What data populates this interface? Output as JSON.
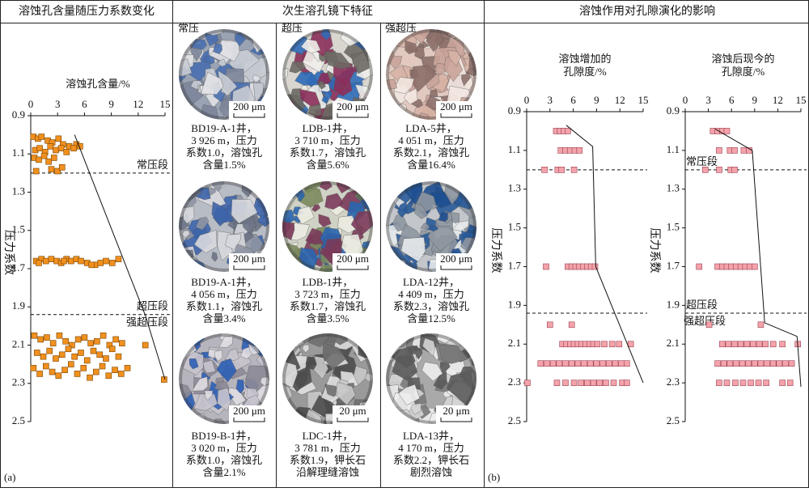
{
  "headers": [
    "溶蚀孔含量随压力系数变化",
    "次生溶孔镜下特征",
    "溶蚀作用对孔隙演化的影响"
  ],
  "panel_labels": [
    "(a)",
    "(b)"
  ],
  "micrographs": {
    "columns": [
      "常压",
      "超压",
      "强超压"
    ],
    "images": [
      [
        {
          "scale": "200 μm",
          "caption": [
            "BD19-A-1井，",
            "3 926 m，压力",
            "系数1.0，溶蚀孔",
            "含量1.5%"
          ]
        },
        {
          "scale": "200 μm",
          "caption": [
            "LDB-1井，",
            "3 710 m，压力",
            "系数1.7，溶蚀孔",
            "含量5.6%"
          ]
        },
        {
          "scale": "200 μm",
          "caption": [
            "LDA-5井，",
            "4 051 m，压力",
            "系数2.1，溶蚀孔",
            "含量16.4%"
          ]
        }
      ],
      [
        {
          "scale": "200 μm",
          "caption": [
            "BD19-A-1井，",
            "4 056 m，压力",
            "系数1.1，溶蚀孔",
            "含量3.4%"
          ]
        },
        {
          "scale": "200 μm",
          "caption": [
            "LDB-1井，",
            "3 723 m，压力",
            "系数1.7，溶蚀孔",
            "含量3.5%"
          ]
        },
        {
          "scale": "200 μm",
          "caption": [
            "LDA-12井，",
            "4 409 m，压力",
            "系数2.3，溶蚀孔",
            "含量12.5%"
          ]
        }
      ],
      [
        {
          "scale": "200 μm",
          "caption": [
            "BD19-B-1井，",
            "3 020 m，压力",
            "系数1.0，溶蚀孔",
            "含量2.1%"
          ]
        },
        {
          "scale": "20 μm",
          "caption": [
            "LDC-1井，",
            "3 781 m，压力",
            "系数1.9，钾长石",
            "沿解理缝溶蚀"
          ]
        },
        {
          "scale": "20 μm",
          "caption": [
            "LDA-13井，",
            "4 170 m，压力",
            "系数2.2，钾长石",
            "剧烈溶蚀"
          ]
        }
      ]
    ]
  },
  "chart_data": [
    {
      "type": "scatter",
      "xlabel": [
        "溶蚀孔含量/%"
      ],
      "ylabel": "压力系数",
      "xaxis": "top",
      "marker": "square",
      "xlim": [
        0,
        15
      ],
      "xticks": [
        0,
        3,
        6,
        9,
        12,
        15
      ],
      "ylim": [
        2.5,
        0.9
      ],
      "yticks": [
        0.9,
        1.1,
        1.3,
        1.5,
        1.7,
        1.9,
        2.1,
        2.3,
        2.5
      ],
      "series": [
        {
          "color": "#f0901e",
          "x": [
            0.3,
            0.8,
            1.2,
            1.9,
            2.4,
            3.1,
            3.6,
            4.3,
            5.1,
            0.5,
            1.0,
            1.6,
            2.2,
            2.8,
            3.4,
            4.0,
            4.8,
            5.5,
            0.4,
            0.9,
            1.5,
            2.0,
            2.6,
            0.6,
            2.3,
            3.0,
            3.5,
            0.6,
            1.2,
            1.7,
            2.3,
            2.9,
            3.4,
            4.0,
            4.5,
            5.1,
            5.6,
            6.3,
            7.2,
            7.8,
            8.4,
            9.1,
            9.8,
            0.9,
            3.7,
            6.8,
            0.4,
            1.1,
            1.8,
            2.5,
            3.2,
            3.9,
            4.6,
            5.3,
            6.0,
            6.7,
            7.4,
            8.1,
            8.8,
            9.5,
            10.2,
            0.7,
            1.4,
            2.1,
            2.8,
            3.5,
            4.2,
            4.9,
            5.6,
            6.3,
            7.0,
            7.7,
            8.4,
            9.1,
            9.8,
            12.8,
            0.3,
            1.0,
            1.7,
            2.4,
            3.1,
            3.8,
            4.5,
            5.2,
            5.9,
            6.6,
            7.3,
            8.0,
            8.7,
            9.4,
            10.1,
            10.8,
            14.9
          ],
          "values": [
            1.01,
            1.02,
            1.01,
            1.03,
            1.04,
            1.02,
            1.05,
            1.06,
            1.05,
            1.08,
            1.07,
            1.09,
            1.06,
            1.08,
            1.07,
            1.09,
            1.07,
            1.06,
            1.12,
            1.13,
            1.11,
            1.14,
            1.12,
            1.19,
            1.18,
            1.19,
            1.17,
            1.66,
            1.65,
            1.66,
            1.65,
            1.66,
            1.67,
            1.65,
            1.66,
            1.65,
            1.66,
            1.67,
            1.68,
            1.67,
            1.66,
            1.67,
            1.65,
            1.67,
            1.66,
            1.68,
            2.05,
            2.07,
            2.06,
            2.09,
            2.05,
            2.08,
            2.1,
            2.07,
            2.06,
            2.09,
            2.08,
            2.05,
            2.1,
            2.07,
            2.09,
            2.14,
            2.16,
            2.13,
            2.17,
            2.15,
            2.12,
            2.16,
            2.14,
            2.18,
            2.13,
            2.15,
            2.17,
            2.12,
            2.16,
            2.1,
            2.22,
            2.25,
            2.21,
            2.24,
            2.26,
            2.23,
            2.2,
            2.25,
            2.22,
            2.27,
            2.24,
            2.21,
            2.26,
            2.23,
            2.25,
            2.22,
            2.28
          ]
        }
      ],
      "trend": {
        "x": [
          4.9,
          12.8,
          15.0
        ],
        "values": [
          1.0,
          1.945,
          2.28
        ]
      },
      "ref_lines": [
        {
          "y": 1.2,
          "above": "常压段"
        },
        {
          "y": 1.94,
          "above": "超压段",
          "below": "强超压段"
        }
      ]
    },
    {
      "type": "scatter",
      "xlabel": [
        "溶蚀增加的",
        "孔隙度/%"
      ],
      "ylabel": "压力系数",
      "xaxis": "top",
      "marker": "square",
      "xlim": [
        0,
        15
      ],
      "xticks": [
        0,
        3,
        6,
        9,
        12,
        15
      ],
      "ylim": [
        2.5,
        0.9
      ],
      "yticks": [
        0.9,
        1.1,
        1.3,
        1.5,
        1.7,
        1.9,
        2.1,
        2.3,
        2.5
      ],
      "series": [
        {
          "color": "#f4a3ab",
          "x": [
            3.8,
            4.3,
            4.8,
            5.3,
            4.4,
            5.0,
            5.6,
            6.2,
            6.8,
            2.3,
            4.0,
            4.5,
            6.1,
            2.5,
            5.3,
            5.8,
            6.3,
            6.8,
            7.3,
            7.8,
            8.3,
            8.8,
            3.0,
            5.8,
            4.6,
            5.1,
            5.6,
            6.1,
            6.6,
            7.1,
            7.6,
            8.1,
            8.6,
            9.1,
            10.0,
            11.0,
            11.9,
            13.4,
            1.8,
            2.6,
            3.4,
            4.2,
            5.0,
            5.8,
            6.6,
            7.4,
            8.2,
            9.0,
            9.8,
            10.6,
            11.4,
            12.2,
            12.9,
            0.1,
            3.9,
            5.0,
            6.1,
            7.0,
            7.8,
            8.6,
            9.4,
            10.2,
            11.2,
            12.3,
            12.9
          ],
          "values": [
            1.0,
            1.0,
            1.0,
            1.0,
            1.1,
            1.1,
            1.1,
            1.1,
            1.1,
            1.2,
            1.2,
            1.2,
            1.2,
            1.7,
            1.7,
            1.7,
            1.7,
            1.7,
            1.7,
            1.7,
            1.7,
            1.7,
            2.0,
            2.0,
            2.1,
            2.1,
            2.1,
            2.1,
            2.1,
            2.1,
            2.1,
            2.1,
            2.1,
            2.1,
            2.1,
            2.1,
            2.1,
            2.1,
            2.2,
            2.2,
            2.2,
            2.2,
            2.2,
            2.2,
            2.2,
            2.2,
            2.2,
            2.2,
            2.2,
            2.2,
            2.2,
            2.2,
            2.2,
            2.3,
            2.3,
            2.3,
            2.3,
            2.3,
            2.3,
            2.3,
            2.3,
            2.3,
            2.3,
            2.3,
            2.3
          ]
        }
      ],
      "trend": {
        "x": [
          5.1,
          8.5,
          8.9,
          15.0
        ],
        "values": [
          0.97,
          1.08,
          1.7,
          2.3
        ]
      },
      "ref_lines": [
        {
          "y": 1.2
        },
        {
          "y": 1.94
        }
      ]
    },
    {
      "type": "scatter",
      "xlabel": [
        "溶蚀后现今的",
        "孔隙度/%"
      ],
      "ylabel": "压力系数",
      "xaxis": "top",
      "marker": "square",
      "xlim": [
        0,
        15
      ],
      "xticks": [
        0,
        3,
        6,
        9,
        12,
        15
      ],
      "ylim": [
        2.5,
        0.9
      ],
      "yticks": [
        0.9,
        1.1,
        1.3,
        1.5,
        1.7,
        1.9,
        2.1,
        2.3,
        2.5
      ],
      "series": [
        {
          "color": "#f4a3ab",
          "x": [
            3.6,
            4.2,
            4.8,
            5.4,
            4.4,
            5.8,
            6.4,
            7.6,
            8.3,
            2.6,
            4.4,
            5.9,
            6.4,
            1.8,
            4.2,
            4.8,
            5.4,
            6.0,
            6.6,
            7.2,
            7.8,
            8.4,
            9.0,
            3.1,
            9.8,
            4.8,
            5.6,
            6.4,
            7.2,
            8.0,
            8.8,
            9.6,
            10.4,
            11.4,
            12.6,
            14.6,
            4.2,
            5.0,
            5.8,
            6.6,
            7.4,
            8.2,
            9.0,
            9.8,
            10.6,
            11.4,
            12.2,
            13.0,
            13.8,
            4.4,
            5.4,
            6.5,
            7.5,
            8.5,
            9.5,
            10.5,
            12.6,
            13.6
          ],
          "values": [
            1.0,
            1.0,
            1.0,
            1.0,
            1.1,
            1.1,
            1.1,
            1.1,
            1.1,
            1.2,
            1.2,
            1.2,
            1.2,
            1.7,
            1.7,
            1.7,
            1.7,
            1.7,
            1.7,
            1.7,
            1.7,
            1.7,
            1.7,
            2.0,
            2.0,
            2.1,
            2.1,
            2.1,
            2.1,
            2.1,
            2.1,
            2.1,
            2.1,
            2.1,
            2.1,
            2.1,
            2.2,
            2.2,
            2.2,
            2.2,
            2.2,
            2.2,
            2.2,
            2.2,
            2.2,
            2.2,
            2.2,
            2.2,
            2.2,
            2.3,
            2.3,
            2.3,
            2.3,
            2.3,
            2.3,
            2.3,
            2.3,
            2.3
          ]
        }
      ],
      "trend": {
        "x": [
          3.9,
          8.7,
          10.3,
          14.5,
          15.0
        ],
        "values": [
          0.99,
          1.1,
          1.99,
          2.06,
          2.32
        ]
      },
      "ref_lines": [
        {
          "y": 1.2,
          "above": "常压段"
        },
        {
          "y": 1.94,
          "above": "超压段",
          "below": "强超压段"
        }
      ]
    }
  ]
}
